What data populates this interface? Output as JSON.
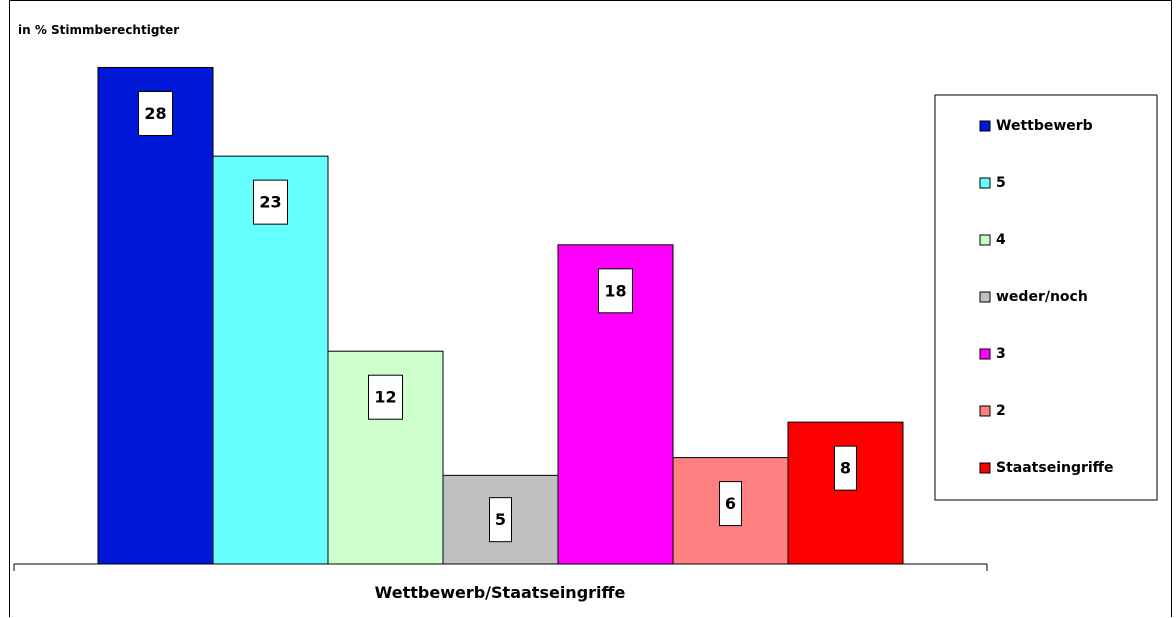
{
  "chart_data": {
    "type": "bar",
    "title": "",
    "ylabel": "in % Stimmberechtigter",
    "xlabel": "Wettbewerb/Staatseingriffe",
    "ylim": [
      0,
      30
    ],
    "grid": false,
    "legend_position": "right",
    "categories": [
      "Wettbewerb/Staatseingriffe"
    ],
    "series": [
      {
        "name": "Wettbewerb",
        "value": 28,
        "color": "#0018d8"
      },
      {
        "name": "5",
        "value": 23,
        "color": "#66ffff"
      },
      {
        "name": "4",
        "value": 12,
        "color": "#ccffcc"
      },
      {
        "name": "weder/noch",
        "value": 5,
        "color": "#c0c0c0"
      },
      {
        "name": "3",
        "value": 18,
        "color": "#ff00ff"
      },
      {
        "name": "2",
        "value": 6,
        "color": "#ff8080"
      },
      {
        "name": "Staatseingriffe",
        "value": 8,
        "color": "#ff0000"
      }
    ]
  }
}
